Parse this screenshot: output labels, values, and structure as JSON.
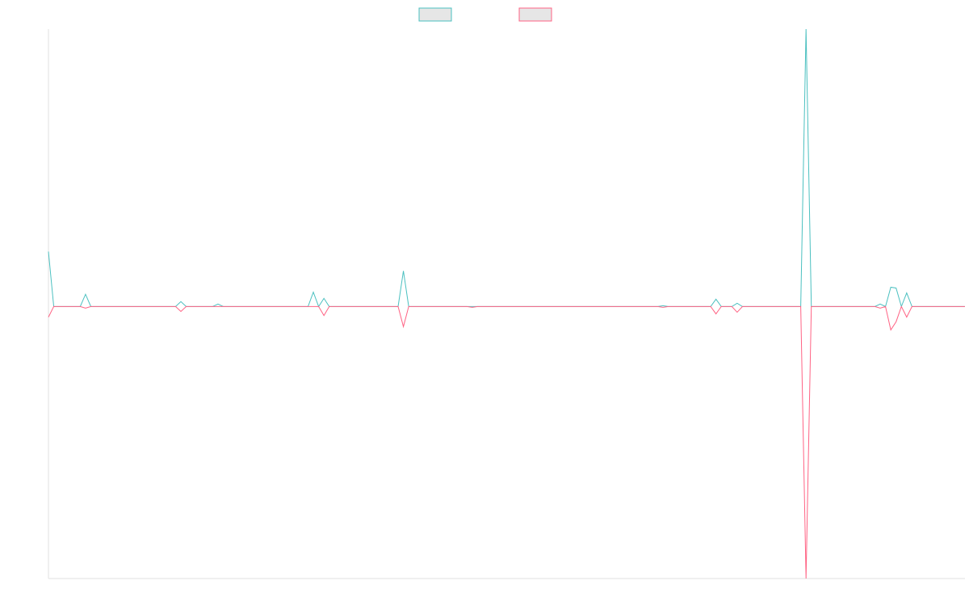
{
  "chart_data": {
    "type": "line",
    "x": [
      0,
      1,
      6,
      7,
      8,
      24,
      25,
      26,
      31,
      32,
      33,
      49,
      50,
      51,
      52,
      53,
      66,
      67,
      68,
      79,
      80,
      81,
      115,
      116,
      117,
      125,
      126,
      127,
      129,
      130,
      131,
      142,
      143,
      144,
      156,
      157,
      158,
      159,
      160,
      161,
      162,
      163,
      173
    ],
    "series": [
      {
        "color": "#4bc0c0",
        "values": [
          20.2,
          0,
          0,
          4.5,
          0,
          0,
          1.8,
          0,
          0,
          0.9,
          0,
          0,
          5.3,
          0,
          3,
          0,
          0,
          13.1,
          0,
          0,
          0,
          0,
          0,
          0.3,
          0,
          0,
          2.7,
          0,
          0,
          1.2,
          0,
          0,
          102,
          0,
          0,
          0.9,
          0,
          7.1,
          6.8,
          0,
          5,
          0,
          0
        ]
      },
      {
        "color": "#ff6384",
        "values": [
          -3.9,
          0,
          0,
          -0.6,
          0,
          0,
          -1.8,
          0,
          0,
          0,
          0,
          0,
          0,
          0,
          -3.3,
          0,
          0,
          -7.4,
          0,
          0,
          -0.3,
          0,
          0,
          -0.3,
          0,
          0,
          -2.7,
          0,
          0,
          -2.1,
          0,
          0,
          -100,
          0,
          0,
          -0.6,
          0,
          -8.6,
          -5.6,
          0,
          -3.9,
          0,
          0
        ]
      }
    ],
    "xlim": [
      0,
      173
    ],
    "ylim": [
      -100,
      102
    ],
    "legend": "top"
  }
}
